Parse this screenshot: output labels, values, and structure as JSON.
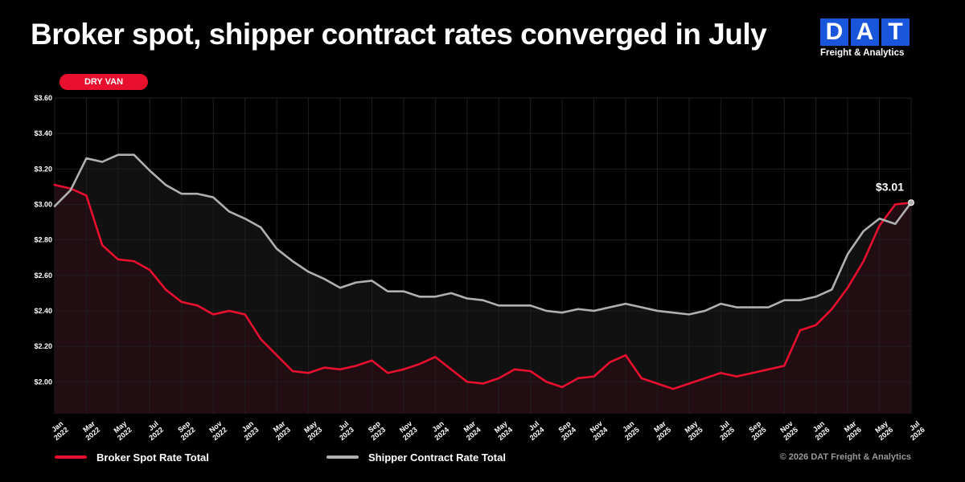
{
  "header": {
    "title": "Broker spot, shipper contract rates converged in July",
    "badge": "DRY VAN"
  },
  "logo": {
    "letters": [
      "D",
      "A",
      "T"
    ],
    "subtitle": "Freight & Analytics",
    "color": "#1a56db"
  },
  "footer": {
    "copyright": "© 2026 DAT Freight & Analytics"
  },
  "colors": {
    "spot": "#e8102e",
    "contract": "#b0b0b0",
    "spot_fill": "#220d12",
    "gap_fill": "#111111",
    "grid": "#1f1f1f"
  },
  "chart_data": {
    "type": "line",
    "title": "Broker spot, shipper contract rates converged in July",
    "ylim": [
      1.82,
      3.6
    ],
    "yticks": [
      2.0,
      2.2,
      2.4,
      2.6,
      2.8,
      3.0,
      3.2,
      3.4,
      3.6
    ],
    "ytick_labels": [
      "$2.00",
      "$2.20",
      "$2.40",
      "$2.60",
      "$2.80",
      "$3.00",
      "$3.20",
      "$3.40",
      "$3.60"
    ],
    "xtick_labels": [
      [
        "Jan",
        "2022"
      ],
      [
        "Mar",
        "2022"
      ],
      [
        "May",
        "2022"
      ],
      [
        "Jul",
        "2022"
      ],
      [
        "Sep",
        "2022"
      ],
      [
        "Nov",
        "2022"
      ],
      [
        "Jan",
        "2023"
      ],
      [
        "Mar",
        "2023"
      ],
      [
        "May",
        "2023"
      ],
      [
        "Jul",
        "2023"
      ],
      [
        "Sep",
        "2023"
      ],
      [
        "Nov",
        "2023"
      ],
      [
        "Jan",
        "2024"
      ],
      [
        "Mar",
        "2024"
      ],
      [
        "May",
        "2024"
      ],
      [
        "Jul",
        "2024"
      ],
      [
        "Sep",
        "2024"
      ],
      [
        "Nov",
        "2024"
      ],
      [
        "Jan",
        "2025"
      ],
      [
        "Mar",
        "2025"
      ],
      [
        "May",
        "2025"
      ],
      [
        "Jul",
        "2025"
      ],
      [
        "Sep",
        "2025"
      ],
      [
        "Nov",
        "2025"
      ],
      [
        "Jan",
        "2026"
      ],
      [
        "Mar",
        "2026"
      ],
      [
        "May",
        "2026"
      ],
      [
        "Jul",
        "2026"
      ]
    ],
    "x": [
      "2022-01",
      "2022-02",
      "2022-03",
      "2022-04",
      "2022-05",
      "2022-06",
      "2022-07",
      "2022-08",
      "2022-09",
      "2022-10",
      "2022-11",
      "2022-12",
      "2023-01",
      "2023-02",
      "2023-03",
      "2023-04",
      "2023-05",
      "2023-06",
      "2023-07",
      "2023-08",
      "2023-09",
      "2023-10",
      "2023-11",
      "2023-12",
      "2024-01",
      "2024-02",
      "2024-03",
      "2024-04",
      "2024-05",
      "2024-06",
      "2024-07",
      "2024-08",
      "2024-09",
      "2024-10",
      "2024-11",
      "2024-12",
      "2025-01",
      "2025-02",
      "2025-03",
      "2025-04",
      "2025-05",
      "2025-06",
      "2025-07",
      "2025-08",
      "2025-09",
      "2025-10",
      "2025-11",
      "2025-12",
      "2026-01",
      "2026-02",
      "2026-03",
      "2026-04",
      "2026-05",
      "2026-06",
      "2026-07"
    ],
    "series": [
      {
        "name": "Broker Spot Rate Total",
        "values": [
          3.11,
          3.09,
          3.05,
          2.77,
          2.69,
          2.68,
          2.63,
          2.52,
          2.45,
          2.43,
          2.38,
          2.4,
          2.38,
          2.24,
          2.15,
          2.06,
          2.05,
          2.08,
          2.07,
          2.09,
          2.12,
          2.05,
          2.07,
          2.1,
          2.14,
          2.07,
          2.0,
          1.99,
          2.02,
          2.07,
          2.06,
          2.0,
          1.97,
          2.02,
          2.03,
          2.11,
          2.15,
          2.02,
          1.99,
          1.96,
          1.99,
          2.02,
          2.05,
          2.03,
          2.05,
          2.07,
          2.09,
          2.29,
          2.32,
          2.41,
          2.53,
          2.68,
          2.88,
          3.0,
          3.01
        ]
      },
      {
        "name": "Shipper Contract Rate Total",
        "values": [
          2.99,
          3.08,
          3.26,
          3.24,
          3.28,
          3.28,
          3.19,
          3.11,
          3.06,
          3.06,
          3.04,
          2.96,
          2.92,
          2.87,
          2.75,
          2.68,
          2.62,
          2.58,
          2.53,
          2.56,
          2.57,
          2.51,
          2.51,
          2.48,
          2.48,
          2.5,
          2.47,
          2.46,
          2.43,
          2.43,
          2.43,
          2.4,
          2.39,
          2.41,
          2.4,
          2.42,
          2.44,
          2.42,
          2.4,
          2.39,
          2.38,
          2.4,
          2.44,
          2.42,
          2.42,
          2.42,
          2.46,
          2.46,
          2.48,
          2.52,
          2.72,
          2.85,
          2.92,
          2.89,
          3.01
        ]
      }
    ],
    "annotation": {
      "text": "$3.01",
      "x": "2026-07",
      "y": 3.01
    }
  }
}
